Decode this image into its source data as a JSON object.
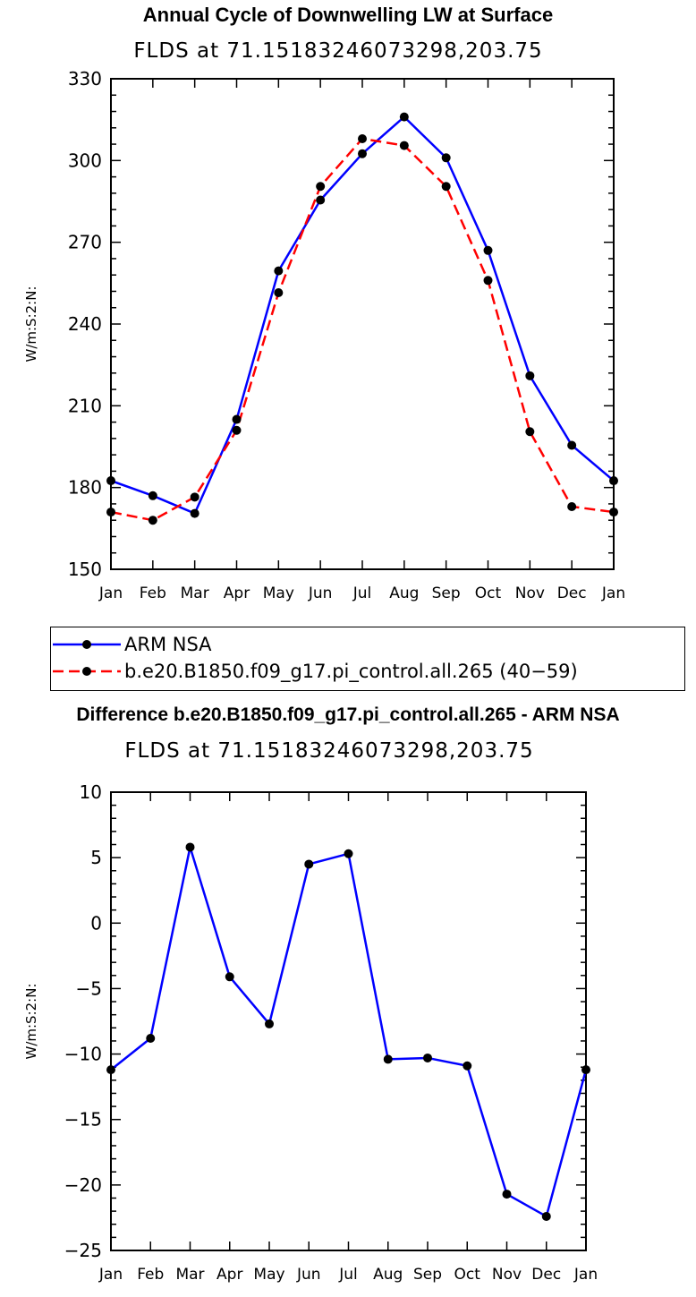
{
  "chart_data": [
    {
      "type": "line",
      "title": "Annual Cycle of Downwelling LW at Surface",
      "subtitle": "FLDS at 71.15183246073298,203.75",
      "ylabel": "W/m:S:2:N:",
      "xlabel": "",
      "categories": [
        "Jan",
        "Feb",
        "Mar",
        "Apr",
        "May",
        "Jun",
        "Jul",
        "Aug",
        "Sep",
        "Oct",
        "Nov",
        "Dec",
        "Jan"
      ],
      "ylim": [
        150,
        330
      ],
      "yticks": [
        150,
        180,
        210,
        240,
        270,
        300,
        330
      ],
      "grid": false,
      "legend_position": "below",
      "series": [
        {
          "name": "ARM NSA",
          "color": "#0000ff",
          "dash": false,
          "values": [
            182.5,
            177,
            170.5,
            205,
            259.5,
            285.5,
            302.5,
            316,
            301,
            267,
            221,
            195.5,
            182.5
          ]
        },
        {
          "name": "b.e20.B1850.f09_g17.pi_control.all.265 (40−59)",
          "color": "#ff0000",
          "dash": true,
          "values": [
            171,
            168,
            176.5,
            201,
            251.5,
            290.5,
            308,
            305.5,
            290.5,
            256,
            200.5,
            173,
            171
          ]
        }
      ]
    },
    {
      "type": "line",
      "title": "Difference b.e20.B1850.f09_g17.pi_control.all.265 - ARM NSA",
      "subtitle": "FLDS at 71.15183246073298,203.75",
      "ylabel": "W/m:S:2:N:",
      "xlabel": "",
      "categories": [
        "Jan",
        "Feb",
        "Mar",
        "Apr",
        "May",
        "Jun",
        "Jul",
        "Aug",
        "Sep",
        "Oct",
        "Nov",
        "Dec",
        "Jan"
      ],
      "ylim": [
        -25,
        10
      ],
      "yticks": [
        -25,
        -20,
        -15,
        -10,
        -5,
        0,
        5,
        10
      ],
      "ytick_labels": [
        "−25",
        "−20",
        "−15",
        "−10",
        "−5",
        "0",
        "5",
        "10"
      ],
      "grid": false,
      "series": [
        {
          "color": "#0000ff",
          "dash": false,
          "values": [
            -11.2,
            -8.8,
            5.8,
            -4.1,
            -7.7,
            4.5,
            5.3,
            -10.4,
            -10.3,
            -10.9,
            -20.7,
            -22.4,
            -11.2
          ]
        }
      ]
    }
  ]
}
